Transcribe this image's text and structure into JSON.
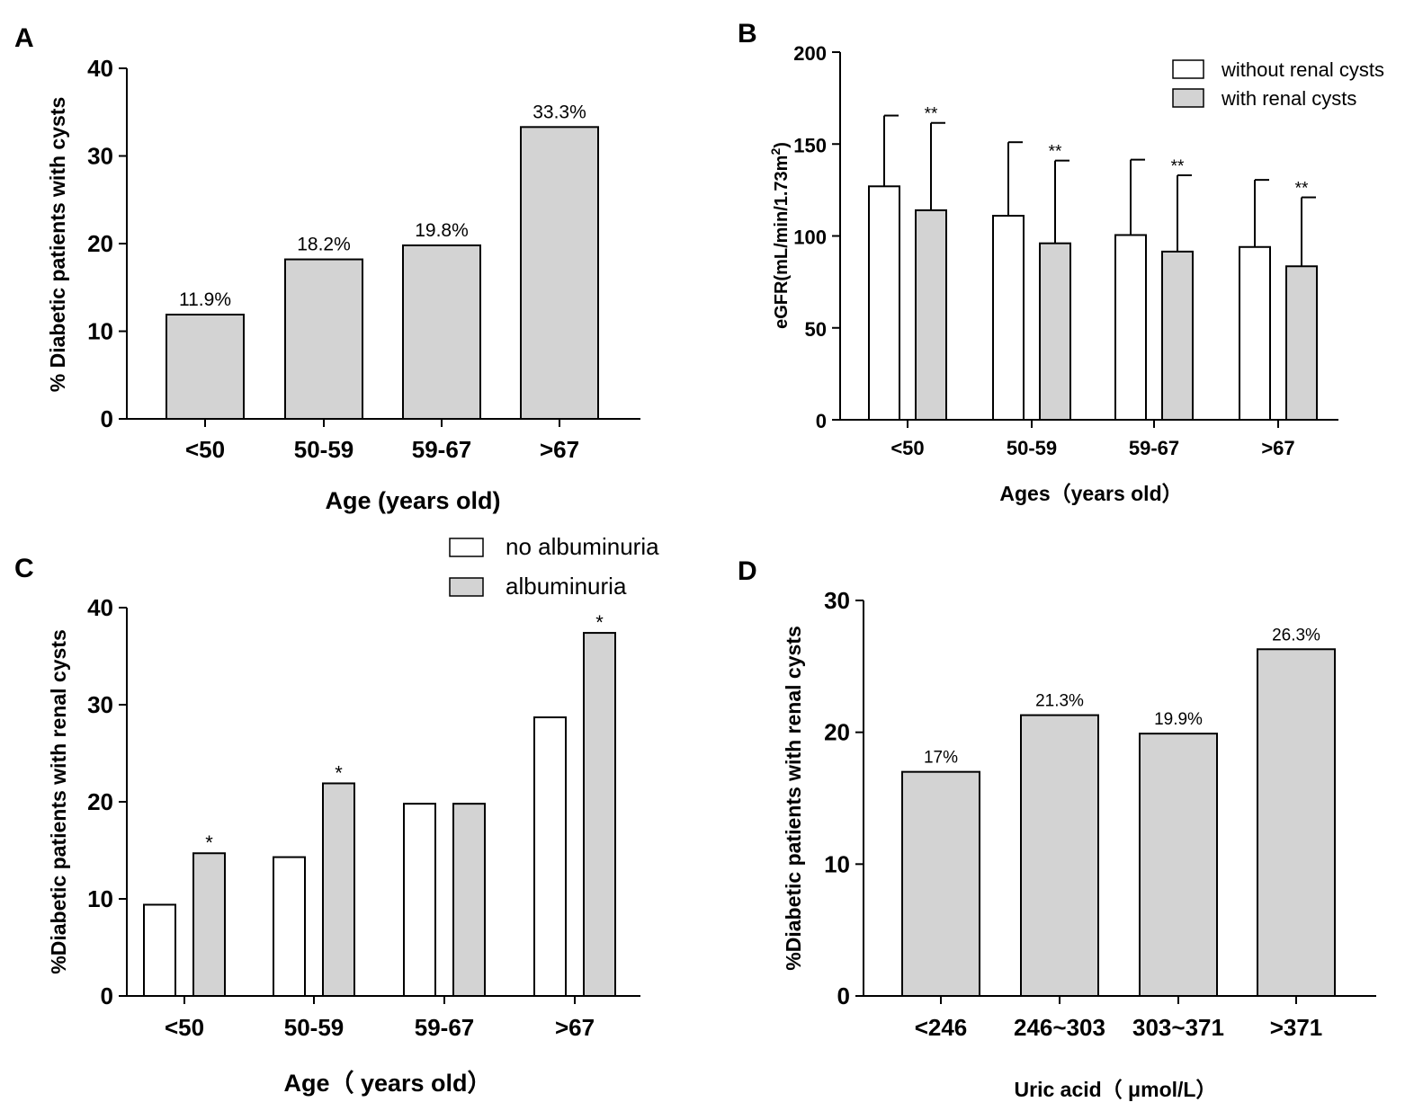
{
  "chart_data": [
    {
      "panel": "A",
      "type": "bar",
      "title": "",
      "categories": [
        "<50",
        "50-59",
        "59-67",
        ">67"
      ],
      "values": [
        11.9,
        18.2,
        19.8,
        33.3
      ],
      "data_labels": [
        "11.9%",
        "18.2%",
        "19.8%",
        "33.3%"
      ],
      "xlabel": "Age (years old)",
      "ylabel": "% Diabetic patients with cysts",
      "ylim": [
        0,
        40
      ],
      "yticks": [
        0,
        10,
        20,
        30,
        40
      ],
      "bar_color": "#d3d3d3",
      "grid": false
    },
    {
      "panel": "B",
      "type": "bar",
      "title": "",
      "categories": [
        "<50",
        "50-59",
        "59-67",
        ">67"
      ],
      "series": [
        {
          "name": "without renal cysts",
          "color": "#ffffff",
          "values": [
            127,
            111,
            100.5,
            94
          ],
          "errors": [
            38.5,
            40,
            41,
            36.5
          ],
          "significance": [
            "",
            "",
            "",
            ""
          ]
        },
        {
          "name": "with renal cysts",
          "color": "#d3d3d3",
          "values": [
            114,
            96,
            91.5,
            83.5
          ],
          "errors": [
            47.5,
            45,
            41.5,
            37.5
          ],
          "significance": [
            "**",
            "**",
            "**",
            "**"
          ]
        }
      ],
      "xlabel": "Ages（years old）",
      "ylabel": "eGFR(mL/min/1.73m",
      "ylabel_sup": "2",
      "ylabel_close": ")",
      "ylim": [
        0,
        200
      ],
      "yticks": [
        0,
        50,
        100,
        150,
        200
      ],
      "legend_position": "top-right",
      "grid": false
    },
    {
      "panel": "C",
      "type": "bar",
      "title": "",
      "categories": [
        "<50",
        "50-59",
        "59-67",
        ">67"
      ],
      "series": [
        {
          "name": " no albuminuria",
          "color": "#ffffff",
          "values": [
            9.4,
            14.3,
            19.8,
            28.7
          ],
          "significance": [
            "",
            "",
            "",
            ""
          ]
        },
        {
          "name": "albuminuria",
          "color": "#d3d3d3",
          "values": [
            14.7,
            21.9,
            19.8,
            37.4
          ],
          "significance": [
            "*",
            "*",
            "",
            "*"
          ]
        }
      ],
      "xlabel": "Age（  years old）",
      "ylabel": "%Diabetic patients with renal cysts",
      "ylim": [
        0,
        40
      ],
      "yticks": [
        0,
        10,
        20,
        30,
        40
      ],
      "legend_position": "top-right",
      "grid": false
    },
    {
      "panel": "D",
      "type": "bar",
      "title": "",
      "categories": [
        "<246",
        "246~303",
        "303~371",
        ">371"
      ],
      "values": [
        17,
        21.3,
        19.9,
        26.3
      ],
      "data_labels": [
        "17%",
        "21.3%",
        "19.9%",
        "26.3%"
      ],
      "xlabel": "Uric acid（ μmol/L）",
      "ylabel": "%Diabetic patients with renal cysts",
      "ylim": [
        0,
        30
      ],
      "yticks": [
        0,
        10,
        20,
        30
      ],
      "bar_color": "#d3d3d3",
      "grid": false
    }
  ]
}
